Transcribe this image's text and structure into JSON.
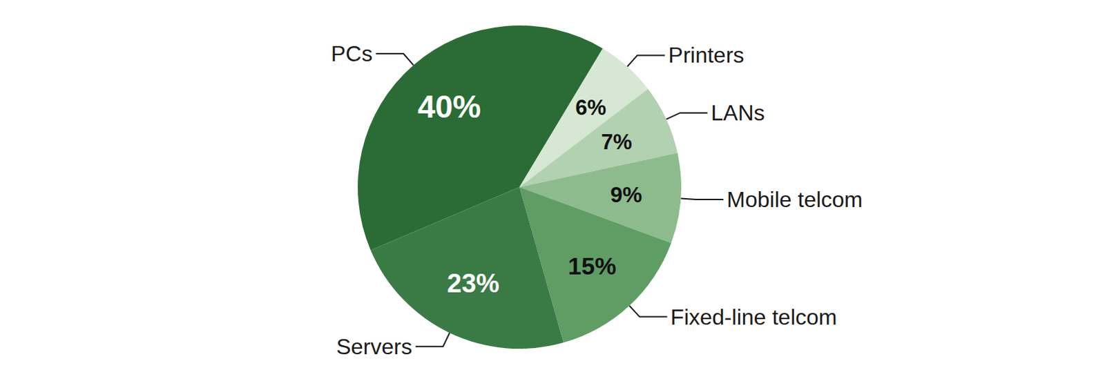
{
  "chart_data": {
    "type": "pie",
    "categories": [
      "PCs",
      "Printers",
      "LANs",
      "Mobile telcom",
      "Fixed-line telcom",
      "Servers"
    ],
    "values": [
      40,
      6,
      7,
      9,
      15,
      23
    ],
    "value_labels": [
      "40%",
      "6%",
      "7%",
      "9%",
      "15%",
      "23%"
    ],
    "colors": [
      "#2b6b35",
      "#d6e8d3",
      "#b2d1b0",
      "#8dbb8d",
      "#5f9d65",
      "#3a7b45"
    ],
    "data_labels": true
  }
}
